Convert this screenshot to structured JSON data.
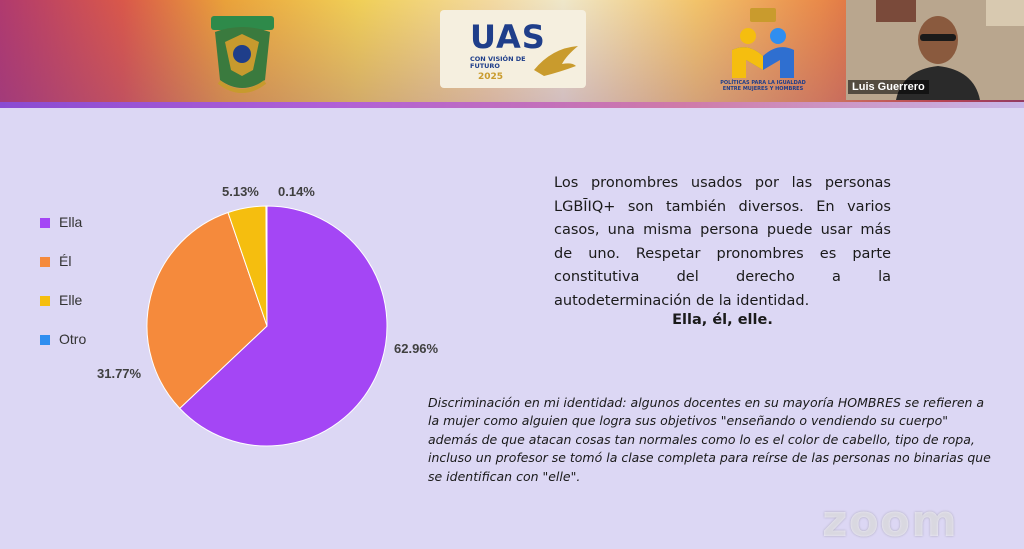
{
  "header": {
    "webcam_participant_name": "Luis Guerrero",
    "uas_logo_text": "UAS",
    "uas_logo_subtitle": "CON VISIÓN DE FUTURO",
    "uas_logo_year": "2025",
    "policy_logo_text": "POLÍTICAS PARA LA IGUALDAD ENTRE MUJERES Y HOMBRES"
  },
  "slide": {
    "description": "Los pronombres usados por las personas LGBĪIQ+ son también diversos. En varios casos, una misma persona puede usar más de uno. Respetar pronombres es parte constitutiva del derecho a la autodeterminación de la identidad.",
    "pronouns_heading": "Ella, él, elle.",
    "quote": "Discriminación en mi identidad: algunos docentes en su mayoría HOMBRES se refieren a la mujer como alguien que logra sus objetivos \"enseñando o vendiendo su cuerpo\" además de que atacan cosas tan normales como lo es el color de cabello, tipo de ropa, incluso un profesor se tomó la clase completa para reírse de las personas no binarias que se identifican con \"elle\"."
  },
  "chart_data": {
    "type": "pie",
    "title": "",
    "legend_position": "left",
    "series": [
      {
        "name": "Ella",
        "value": 62.96,
        "label": "62.96%",
        "color": "#a446f5"
      },
      {
        "name": "Él",
        "value": 31.77,
        "label": "31.77%",
        "color": "#f58a3c"
      },
      {
        "name": "Elle",
        "value": 5.13,
        "label": "5.13%",
        "color": "#f5be0f"
      },
      {
        "name": "Otro",
        "value": 0.14,
        "label": "0.14%",
        "color": "#2f8ef0"
      }
    ]
  },
  "watermark": {
    "text": "zoom"
  }
}
